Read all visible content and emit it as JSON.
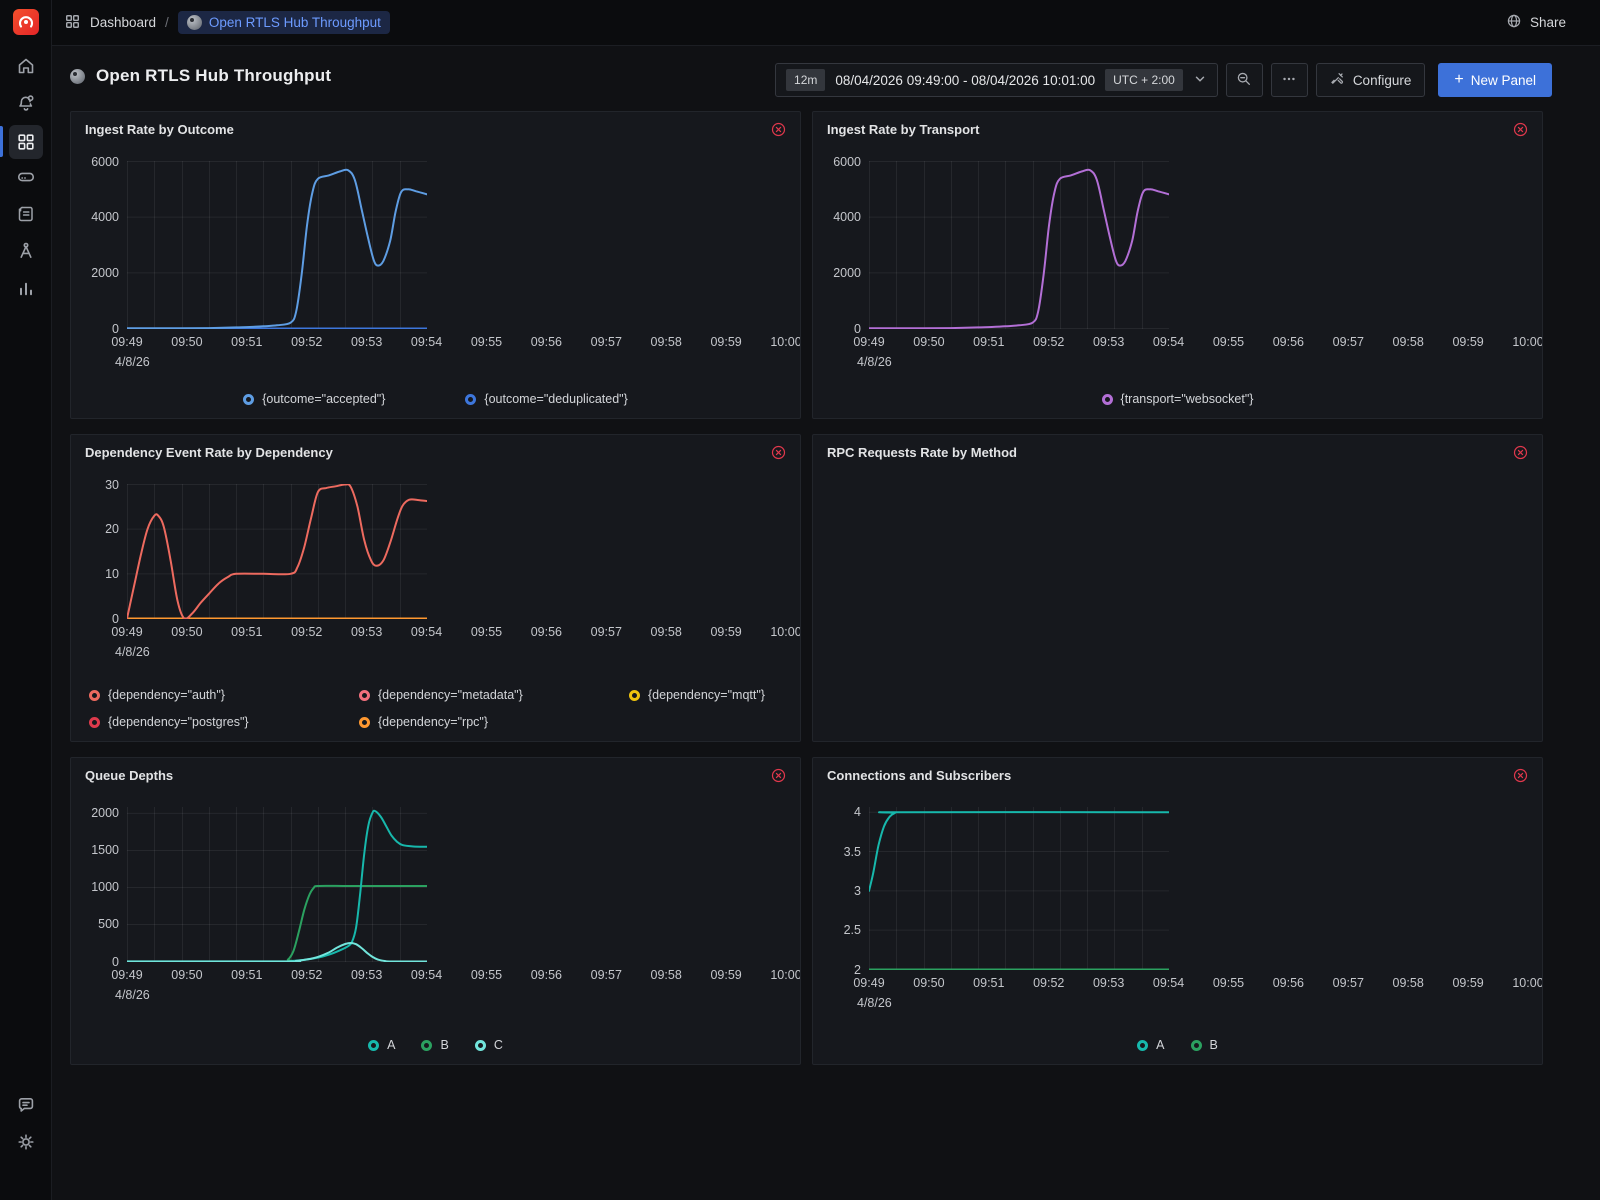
{
  "topbar": {
    "breadcrumb": {
      "section": "Dashboard",
      "separator": "/",
      "current": "Open RTLS Hub Throughput"
    },
    "share": "Share"
  },
  "toolbar": {
    "title": "Open RTLS Hub Throughput",
    "range_duration": "12m",
    "range": "08/04/2026 09:49:00 - 08/04/2026 10:01:00",
    "timezone": "UTC + 2:00",
    "configure": "Configure",
    "plus": "+",
    "new_panel": "New Panel"
  },
  "icons": {
    "logo": "grafana-swirl",
    "breadcrumb": "grid",
    "share": "globe",
    "time_dropdown": "chevron-down",
    "zoom_out": "magnifier-minus",
    "more": "ellipsis",
    "configure": "tools",
    "new_panel": "plus",
    "panel_error": "circle-x",
    "dashboard": "sphere",
    "sidebar": [
      "home",
      "bell-alert",
      "grid",
      "storage",
      "scroll",
      "compass",
      "bar-chart",
      "comment",
      "gear"
    ]
  },
  "colors": {
    "accent_blue": "#3D71D9",
    "error_red": "#E0384C",
    "breadcrumb_active": "#6D9BFF"
  },
  "chart_data": [
    {
      "type": "line",
      "title": "Ingest Rate by Outcome",
      "x_labels": [
        "09:49",
        "09:50",
        "09:51",
        "09:52",
        "09:53",
        "09:54",
        "09:55",
        "09:56",
        "09:57",
        "09:58",
        "09:59",
        "10:00"
      ],
      "x_max": 11,
      "date_label": "4/8/26",
      "y_min": 0,
      "y_plot_max": 6000,
      "y_ticks": [
        {
          "value": 0,
          "label": "0"
        },
        {
          "value": 2000,
          "label": "2000"
        },
        {
          "value": 4000,
          "label": "4000"
        },
        {
          "value": 6000,
          "label": "6000"
        }
      ],
      "legend": [
        {
          "label": "{outcome=\"accepted\"}",
          "color": "#5E9DE3"
        },
        {
          "label": "{outcome=\"deduplicated\"}",
          "color": "#3D76DC"
        }
      ],
      "series": [
        {
          "name": "{outcome=\"deduplicated\"}",
          "color": "#3D76DC",
          "width": 2,
          "points": [
            [
              0,
              0
            ],
            [
              11,
              0
            ]
          ]
        },
        {
          "name": "{outcome=\"accepted\"}",
          "color": "#5E9DE3",
          "width": 2,
          "points": [
            [
              0,
              10
            ],
            [
              1,
              10
            ],
            [
              2,
              10
            ],
            [
              3,
              15
            ],
            [
              4,
              40
            ],
            [
              4.5,
              55
            ],
            [
              5,
              80
            ],
            [
              5.5,
              115
            ],
            [
              6,
              210
            ],
            [
              6.2,
              600
            ],
            [
              6.4,
              1900
            ],
            [
              6.6,
              3700
            ],
            [
              6.8,
              4900
            ],
            [
              7,
              5380
            ],
            [
              7.4,
              5500
            ],
            [
              7.8,
              5640
            ],
            [
              8.1,
              5690
            ],
            [
              8.35,
              5350
            ],
            [
              8.6,
              4300
            ],
            [
              8.85,
              3200
            ],
            [
              9.05,
              2450
            ],
            [
              9.2,
              2260
            ],
            [
              9.4,
              2430
            ],
            [
              9.65,
              3150
            ],
            [
              9.85,
              4200
            ],
            [
              10.05,
              4900
            ],
            [
              10.3,
              5000
            ],
            [
              10.6,
              4930
            ],
            [
              11,
              4820
            ]
          ]
        }
      ]
    },
    {
      "type": "line",
      "title": "Ingest Rate by Transport",
      "x_labels": [
        "09:49",
        "09:50",
        "09:51",
        "09:52",
        "09:53",
        "09:54",
        "09:55",
        "09:56",
        "09:57",
        "09:58",
        "09:59",
        "10:00"
      ],
      "x_max": 11,
      "date_label": "4/8/26",
      "y_min": 0,
      "y_plot_max": 6000,
      "y_ticks": [
        {
          "value": 0,
          "label": "0"
        },
        {
          "value": 2000,
          "label": "2000"
        },
        {
          "value": 4000,
          "label": "4000"
        },
        {
          "value": 6000,
          "label": "6000"
        }
      ],
      "legend": [
        {
          "label": "{transport=\"websocket\"}",
          "color": "#B36FD6"
        }
      ],
      "series": [
        {
          "name": "{transport=\"websocket\"}",
          "color": "#B36FD6",
          "width": 2,
          "points": [
            [
              0,
              10
            ],
            [
              1,
              10
            ],
            [
              2,
              10
            ],
            [
              3,
              15
            ],
            [
              4,
              40
            ],
            [
              4.5,
              55
            ],
            [
              5,
              80
            ],
            [
              5.5,
              115
            ],
            [
              6,
              210
            ],
            [
              6.2,
              600
            ],
            [
              6.4,
              1900
            ],
            [
              6.6,
              3700
            ],
            [
              6.8,
              4900
            ],
            [
              7,
              5380
            ],
            [
              7.4,
              5500
            ],
            [
              7.8,
              5640
            ],
            [
              8.1,
              5690
            ],
            [
              8.35,
              5350
            ],
            [
              8.6,
              4300
            ],
            [
              8.85,
              3200
            ],
            [
              9.05,
              2450
            ],
            [
              9.2,
              2260
            ],
            [
              9.4,
              2430
            ],
            [
              9.65,
              3150
            ],
            [
              9.85,
              4200
            ],
            [
              10.05,
              4900
            ],
            [
              10.3,
              5000
            ],
            [
              10.6,
              4930
            ],
            [
              11,
              4820
            ]
          ]
        }
      ]
    },
    {
      "type": "line",
      "title": "Dependency Event Rate by Dependency",
      "x_labels": [
        "09:49",
        "09:50",
        "09:51",
        "09:52",
        "09:53",
        "09:54",
        "09:55",
        "09:56",
        "09:57",
        "09:58",
        "09:59",
        "10:00"
      ],
      "x_max": 11,
      "date_label": "4/8/26",
      "y_min": 0,
      "y_plot_max": 30,
      "y_ticks": [
        {
          "value": 0,
          "label": "0"
        },
        {
          "value": 10,
          "label": "10"
        },
        {
          "value": 20,
          "label": "20"
        },
        {
          "value": 30,
          "label": "30"
        }
      ],
      "legend_columns": 3,
      "legend_col_width": 244,
      "legend": [
        {
          "label": "{dependency=\"auth\"}",
          "color": "#ED6A5F"
        },
        {
          "label": "{dependency=\"metadata\"}",
          "color": "#F2707D"
        },
        {
          "label": "{dependency=\"mqtt\"}",
          "color": "#EFC30E"
        },
        {
          "label": "{dependency=\"postgres\"}",
          "color": "#DE3A4C"
        },
        {
          "label": "{dependency=\"rpc\"}",
          "color": "#FF9830"
        }
      ],
      "series": [
        {
          "name": "{dependency=\"metadata\"}",
          "color": "#F2707D",
          "width": 2,
          "points": [
            [
              0,
              0
            ],
            [
              11,
              0
            ]
          ]
        },
        {
          "name": "{dependency=\"mqtt\"}",
          "color": "#EFC30E",
          "width": 2,
          "points": [
            [
              0,
              0
            ],
            [
              11,
              0
            ]
          ]
        },
        {
          "name": "{dependency=\"postgres\"}",
          "color": "#DE3A4C",
          "width": 2,
          "points": [
            [
              0,
              0
            ],
            [
              11,
              0
            ]
          ]
        },
        {
          "name": "{dependency=\"rpc\"}",
          "color": "#FF9830",
          "width": 2,
          "points": [
            [
              0,
              0
            ],
            [
              11,
              0
            ]
          ]
        },
        {
          "name": "{dependency=\"auth\"}",
          "color": "#ED6A5F",
          "width": 2,
          "points": [
            [
              0,
              0
            ],
            [
              0.25,
              7
            ],
            [
              0.5,
              14
            ],
            [
              0.75,
              20
            ],
            [
              1,
              23
            ],
            [
              1.15,
              23
            ],
            [
              1.35,
              20.5
            ],
            [
              1.6,
              13
            ],
            [
              1.85,
              4
            ],
            [
              2.1,
              0
            ],
            [
              2.4,
              1.2
            ],
            [
              2.7,
              3.5
            ],
            [
              3,
              5.5
            ],
            [
              3.35,
              7.8
            ],
            [
              3.7,
              9.3
            ],
            [
              4,
              10
            ],
            [
              5,
              10
            ],
            [
              6,
              10
            ],
            [
              6.25,
              11.5
            ],
            [
              6.5,
              16
            ],
            [
              6.75,
              22.5
            ],
            [
              7,
              28.3
            ],
            [
              7.3,
              29.2
            ],
            [
              7.65,
              29.6
            ],
            [
              8,
              30
            ],
            [
              8.2,
              29.5
            ],
            [
              8.45,
              25
            ],
            [
              8.7,
              17.5
            ],
            [
              8.95,
              13
            ],
            [
              9.15,
              11.8
            ],
            [
              9.4,
              13
            ],
            [
              9.65,
              17
            ],
            [
              9.9,
              22
            ],
            [
              10.1,
              25.2
            ],
            [
              10.35,
              26.6
            ],
            [
              10.7,
              26.5
            ],
            [
              11,
              26.3
            ]
          ]
        }
      ]
    },
    {
      "type": "line",
      "title": "RPC Requests Rate by Method",
      "error": true,
      "x_labels": [],
      "x_max": 11,
      "date_label": "",
      "y_min": 0,
      "y_plot_max": 1,
      "y_ticks": [],
      "legend": [],
      "series": []
    },
    {
      "type": "line",
      "title": "Queue Depths",
      "x_labels": [
        "09:49",
        "09:50",
        "09:51",
        "09:52",
        "09:53",
        "09:54",
        "09:55",
        "09:56",
        "09:57",
        "09:58",
        "09:59",
        "10:00"
      ],
      "x_max": 11,
      "date_label": "4/8/26",
      "y_min": 0,
      "y_plot_max": 2080,
      "y_ticks": [
        {
          "value": 0,
          "label": "0"
        },
        {
          "value": 500,
          "label": "500"
        },
        {
          "value": 1000,
          "label": "1000"
        },
        {
          "value": 1500,
          "label": "1500"
        },
        {
          "value": 2000,
          "label": "2000"
        }
      ],
      "legend": [
        {
          "label": "A",
          "color": "#17B8AC"
        },
        {
          "label": "B",
          "color": "#2BA160"
        },
        {
          "label": "C",
          "color": "#72E5DC"
        }
      ],
      "series": [
        {
          "name": "B",
          "color": "#2BA160",
          "width": 2,
          "points": [
            [
              0,
              0
            ],
            [
              5.65,
              0
            ],
            [
              5.9,
              25
            ],
            [
              6.1,
              140
            ],
            [
              6.3,
              400
            ],
            [
              6.5,
              700
            ],
            [
              6.7,
              910
            ],
            [
              6.85,
              995
            ],
            [
              7,
              1020
            ],
            [
              8,
              1020
            ],
            [
              9,
              1020
            ],
            [
              10,
              1020
            ],
            [
              11,
              1020
            ]
          ]
        },
        {
          "name": "A",
          "color": "#17B8AC",
          "width": 2,
          "points": [
            [
              0,
              2
            ],
            [
              5.6,
              2
            ],
            [
              6,
              6
            ],
            [
              6.5,
              22
            ],
            [
              7,
              52
            ],
            [
              7.4,
              92
            ],
            [
              7.8,
              150
            ],
            [
              8.1,
              205
            ],
            [
              8.25,
              265
            ],
            [
              8.4,
              460
            ],
            [
              8.55,
              920
            ],
            [
              8.7,
              1460
            ],
            [
              8.85,
              1840
            ],
            [
              9,
              2010
            ],
            [
              9.1,
              2032
            ],
            [
              9.3,
              1958
            ],
            [
              9.5,
              1830
            ],
            [
              9.7,
              1700
            ],
            [
              9.9,
              1618
            ],
            [
              10.1,
              1572
            ],
            [
              10.5,
              1553
            ],
            [
              11,
              1550
            ]
          ]
        },
        {
          "name": "C",
          "color": "#72E5DC",
          "width": 2,
          "points": [
            [
              0,
              0
            ],
            [
              5.8,
              0
            ],
            [
              6.2,
              8
            ],
            [
              6.6,
              28
            ],
            [
              7,
              62
            ],
            [
              7.4,
              122
            ],
            [
              7.7,
              188
            ],
            [
              8,
              236
            ],
            [
              8.2,
              250
            ],
            [
              8.4,
              233
            ],
            [
              8.6,
              182
            ],
            [
              8.8,
              118
            ],
            [
              9,
              62
            ],
            [
              9.2,
              26
            ],
            [
              9.45,
              7
            ],
            [
              9.7,
              0
            ],
            [
              11,
              0
            ]
          ]
        }
      ]
    },
    {
      "type": "line",
      "title": "Connections and Subscribers",
      "x_labels": [
        "09:49",
        "09:50",
        "09:51",
        "09:52",
        "09:53",
        "09:54",
        "09:55",
        "09:56",
        "09:57",
        "09:58",
        "09:59",
        "10:00"
      ],
      "x_max": 11,
      "date_label": "4/8/26",
      "y_min": 2,
      "y_plot_max": 4.06,
      "y_ticks": [
        {
          "value": 2,
          "label": "2"
        },
        {
          "value": 2.5,
          "label": "2.5"
        },
        {
          "value": 3,
          "label": "3"
        },
        {
          "value": 3.5,
          "label": "3.5"
        },
        {
          "value": 4,
          "label": "4"
        }
      ],
      "legend": [
        {
          "label": "A",
          "color": "#17B8AC"
        },
        {
          "label": "B",
          "color": "#2BA160"
        }
      ],
      "series": [
        {
          "name": "B",
          "color": "#2BA160",
          "width": 2,
          "points": [
            [
              0,
              2
            ],
            [
              11,
              2
            ]
          ]
        },
        {
          "name": "A",
          "color": "#17B8AC",
          "width": 2,
          "points": [
            [
              0,
              3
            ],
            [
              0.15,
              3.22
            ],
            [
              0.35,
              3.58
            ],
            [
              0.55,
              3.82
            ],
            [
              0.75,
              3.94
            ],
            [
              0.95,
              3.99
            ],
            [
              1.15,
              4
            ],
            [
              11,
              4
            ]
          ]
        }
      ]
    }
  ]
}
